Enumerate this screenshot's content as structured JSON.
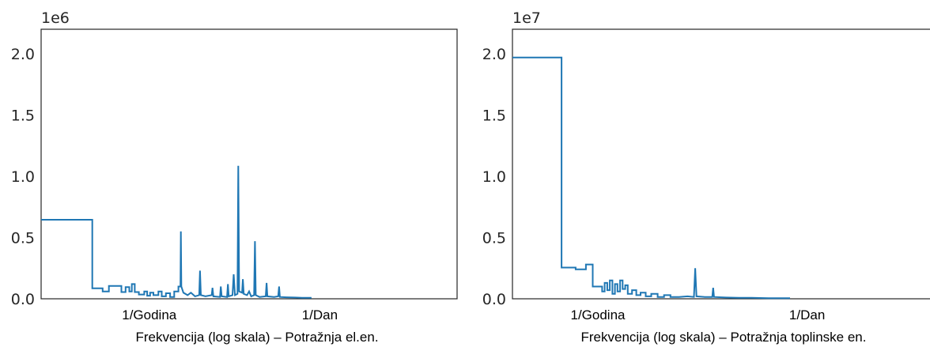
{
  "chart_data": [
    {
      "type": "line",
      "step": true,
      "scale_label": "1e6",
      "xlabel": "Frekvencija (log skala) – Potražnja el.en.",
      "x_scale": "log",
      "x_tick_labels": [
        "1/Godina",
        "1/Dan"
      ],
      "y_ticks": [
        0.0,
        0.5,
        1.0,
        1.5,
        2.0
      ],
      "y_tick_labels": [
        "0.0",
        "0.5",
        "1.0",
        "1.5",
        "2.0"
      ],
      "ylim": [
        0,
        2.2
      ],
      "grid": false,
      "series": [
        {
          "points": [
            [
              0.0,
              0.645
            ],
            [
              0.123,
              0.645
            ],
            [
              0.123,
              0.085
            ],
            [
              0.148,
              0.085
            ],
            [
              0.148,
              0.06
            ],
            [
              0.163,
              0.06
            ],
            [
              0.163,
              0.105
            ],
            [
              0.193,
              0.105
            ],
            [
              0.193,
              0.055
            ],
            [
              0.203,
              0.055
            ],
            [
              0.203,
              0.095
            ],
            [
              0.212,
              0.095
            ],
            [
              0.212,
              0.06
            ],
            [
              0.218,
              0.06
            ],
            [
              0.218,
              0.12
            ],
            [
              0.225,
              0.12
            ],
            [
              0.225,
              0.055
            ],
            [
              0.235,
              0.055
            ],
            [
              0.235,
              0.035
            ],
            [
              0.248,
              0.035
            ],
            [
              0.248,
              0.06
            ],
            [
              0.255,
              0.06
            ],
            [
              0.255,
              0.025
            ],
            [
              0.262,
              0.025
            ],
            [
              0.262,
              0.05
            ],
            [
              0.27,
              0.05
            ],
            [
              0.27,
              0.03
            ],
            [
              0.282,
              0.03
            ],
            [
              0.282,
              0.06
            ],
            [
              0.29,
              0.06
            ],
            [
              0.29,
              0.02
            ],
            [
              0.3,
              0.02
            ],
            [
              0.3,
              0.045
            ],
            [
              0.31,
              0.045
            ],
            [
              0.31,
              0.015
            ],
            [
              0.32,
              0.015
            ],
            [
              0.32,
              0.06
            ],
            [
              0.33,
              0.06
            ],
            [
              0.33,
              0.1
            ],
            [
              0.335,
              0.1
            ],
            [
              0.336,
              0.55
            ],
            [
              0.337,
              0.1
            ],
            [
              0.342,
              0.05
            ],
            [
              0.352,
              0.03
            ],
            [
              0.36,
              0.05
            ],
            [
              0.37,
              0.02
            ],
            [
              0.38,
              0.03
            ],
            [
              0.382,
              0.23
            ],
            [
              0.384,
              0.03
            ],
            [
              0.395,
              0.02
            ],
            [
              0.41,
              0.03
            ],
            [
              0.412,
              0.09
            ],
            [
              0.414,
              0.02
            ],
            [
              0.43,
              0.015
            ],
            [
              0.432,
              0.1
            ],
            [
              0.434,
              0.02
            ],
            [
              0.447,
              0.015
            ],
            [
              0.449,
              0.12
            ],
            [
              0.451,
              0.02
            ],
            [
              0.46,
              0.03
            ],
            [
              0.463,
              0.2
            ],
            [
              0.466,
              0.03
            ],
            [
              0.472,
              0.04
            ],
            [
              0.474,
              1.085
            ],
            [
              0.476,
              0.06
            ],
            [
              0.483,
              0.05
            ],
            [
              0.485,
              0.16
            ],
            [
              0.487,
              0.04
            ],
            [
              0.495,
              0.03
            ],
            [
              0.5,
              0.06
            ],
            [
              0.505,
              0.02
            ],
            [
              0.512,
              0.03
            ],
            [
              0.514,
              0.47
            ],
            [
              0.516,
              0.03
            ],
            [
              0.525,
              0.015
            ],
            [
              0.54,
              0.02
            ],
            [
              0.542,
              0.13
            ],
            [
              0.544,
              0.02
            ],
            [
              0.56,
              0.015
            ],
            [
              0.57,
              0.02
            ],
            [
              0.572,
              0.1
            ],
            [
              0.574,
              0.015
            ],
            [
              0.59,
              0.012
            ],
            [
              0.61,
              0.01
            ],
            [
              0.63,
              0.008
            ],
            [
              0.65,
              0.008
            ]
          ]
        }
      ]
    },
    {
      "type": "line",
      "step": true,
      "scale_label": "1e7",
      "xlabel": "Frekvencija (log skala) – Potražnja toplinske en.",
      "x_scale": "log",
      "x_tick_labels": [
        "1/Godina",
        "1/Dan"
      ],
      "y_ticks": [
        0.0,
        0.5,
        1.0,
        1.5,
        2.0
      ],
      "y_tick_labels": [
        "0.0",
        "0.5",
        "1.0",
        "1.5",
        "2.0"
      ],
      "ylim": [
        0,
        2.2
      ],
      "grid": false,
      "series": [
        {
          "points": [
            [
              0.0,
              1.97
            ],
            [
              0.115,
              1.97
            ],
            [
              0.115,
              0.255
            ],
            [
              0.148,
              0.255
            ],
            [
              0.148,
              0.24
            ],
            [
              0.172,
              0.24
            ],
            [
              0.172,
              0.28
            ],
            [
              0.188,
              0.28
            ],
            [
              0.188,
              0.1
            ],
            [
              0.21,
              0.1
            ],
            [
              0.21,
              0.06
            ],
            [
              0.216,
              0.06
            ],
            [
              0.216,
              0.13
            ],
            [
              0.222,
              0.13
            ],
            [
              0.222,
              0.07
            ],
            [
              0.228,
              0.07
            ],
            [
              0.228,
              0.15
            ],
            [
              0.234,
              0.15
            ],
            [
              0.234,
              0.04
            ],
            [
              0.24,
              0.04
            ],
            [
              0.24,
              0.12
            ],
            [
              0.246,
              0.12
            ],
            [
              0.246,
              0.06
            ],
            [
              0.252,
              0.06
            ],
            [
              0.252,
              0.15
            ],
            [
              0.258,
              0.15
            ],
            [
              0.258,
              0.08
            ],
            [
              0.264,
              0.08
            ],
            [
              0.264,
              0.11
            ],
            [
              0.27,
              0.11
            ],
            [
              0.27,
              0.04
            ],
            [
              0.28,
              0.04
            ],
            [
              0.28,
              0.07
            ],
            [
              0.29,
              0.07
            ],
            [
              0.29,
              0.03
            ],
            [
              0.3,
              0.03
            ],
            [
              0.3,
              0.05
            ],
            [
              0.312,
              0.05
            ],
            [
              0.312,
              0.02
            ],
            [
              0.325,
              0.02
            ],
            [
              0.325,
              0.04
            ],
            [
              0.34,
              0.04
            ],
            [
              0.34,
              0.015
            ],
            [
              0.355,
              0.015
            ],
            [
              0.355,
              0.03
            ],
            [
              0.37,
              0.03
            ],
            [
              0.37,
              0.015
            ],
            [
              0.39,
              0.015
            ],
            [
              0.41,
              0.02
            ],
            [
              0.425,
              0.015
            ],
            [
              0.428,
              0.25
            ],
            [
              0.431,
              0.02
            ],
            [
              0.45,
              0.015
            ],
            [
              0.468,
              0.015
            ],
            [
              0.47,
              0.09
            ],
            [
              0.472,
              0.015
            ],
            [
              0.5,
              0.01
            ],
            [
              0.53,
              0.008
            ],
            [
              0.56,
              0.008
            ],
            [
              0.6,
              0.005
            ],
            [
              0.65,
              0.005
            ]
          ]
        }
      ]
    }
  ]
}
